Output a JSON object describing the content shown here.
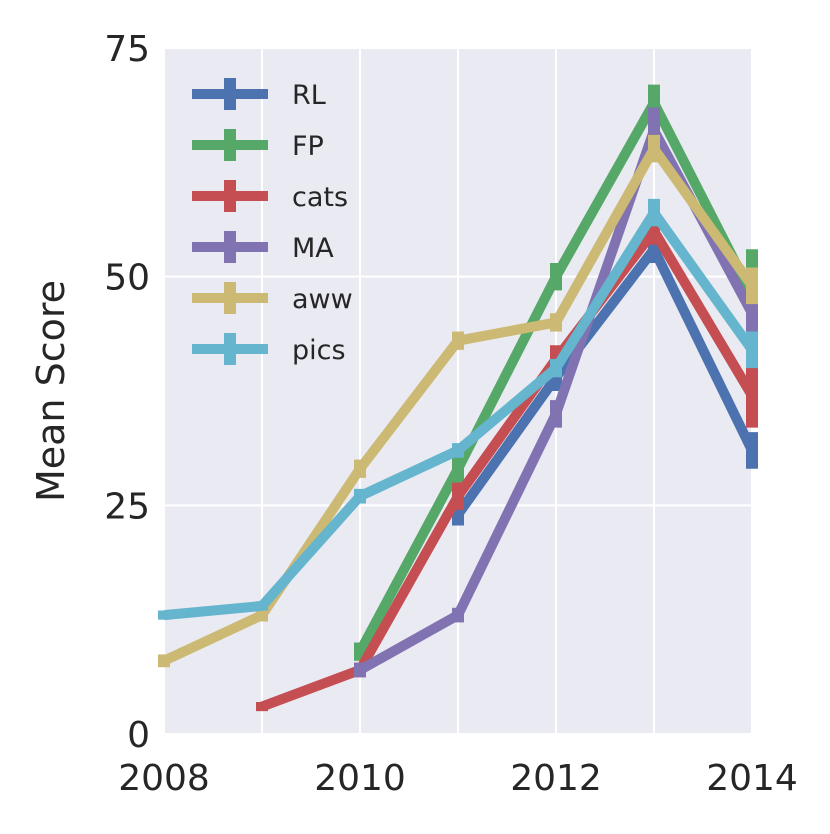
{
  "chart_data": {
    "type": "line",
    "title": "",
    "xlabel": "",
    "ylabel": "Mean Score",
    "xlim": [
      2008,
      2014
    ],
    "ylim": [
      0,
      75
    ],
    "x_ticks": [
      2008,
      2010,
      2012,
      2014
    ],
    "x_tick_labels": [
      "2008",
      "2010",
      "2012",
      "2014"
    ],
    "y_ticks": [
      0,
      25,
      50,
      75
    ],
    "y_tick_labels": [
      "0",
      "25",
      "50",
      "75"
    ],
    "grid": true,
    "legend_position": "top-left",
    "series": [
      {
        "name": "RL",
        "color": "#4c72b0",
        "x": [
          2011,
          2012,
          2013,
          2014
        ],
        "y": [
          24,
          39,
          53,
          31
        ],
        "err": [
          1.2,
          1.5,
          1.5,
          2.0
        ]
      },
      {
        "name": "FP",
        "color": "#55a868",
        "x": [
          2010,
          2011,
          2012,
          2013,
          2014
        ],
        "y": [
          9,
          29,
          50,
          69,
          48
        ],
        "err": [
          1.0,
          1.5,
          1.5,
          2.0,
          5.0
        ]
      },
      {
        "name": "cats",
        "color": "#c44e52",
        "x": [
          2009,
          2010,
          2011,
          2012,
          2013,
          2014
        ],
        "y": [
          3,
          7,
          26,
          41,
          55,
          37
        ],
        "err": [
          0.5,
          0.8,
          1.5,
          1.5,
          1.5,
          3.5
        ]
      },
      {
        "name": "MA",
        "color": "#8172b2",
        "x": [
          2010,
          2011,
          2012,
          2013,
          2014
        ],
        "y": [
          7,
          13,
          35,
          66,
          46
        ],
        "err": [
          0.8,
          0.8,
          1.5,
          2.5,
          2.5
        ]
      },
      {
        "name": "aww",
        "color": "#ccb974",
        "x": [
          2008,
          2009,
          2010,
          2011,
          2012,
          2013,
          2014
        ],
        "y": [
          8,
          13,
          29,
          43,
          45,
          64,
          49
        ],
        "err": [
          0.7,
          0.7,
          1.0,
          1.0,
          1.0,
          1.5,
          2.0
        ]
      },
      {
        "name": "pics",
        "color": "#64b5cd",
        "x": [
          2008,
          2009,
          2010,
          2011,
          2012,
          2013,
          2014
        ],
        "y": [
          13,
          14,
          26,
          31,
          40,
          57,
          42
        ],
        "err": [
          0.5,
          0.5,
          0.8,
          0.8,
          1.0,
          1.5,
          2.0
        ]
      }
    ]
  }
}
